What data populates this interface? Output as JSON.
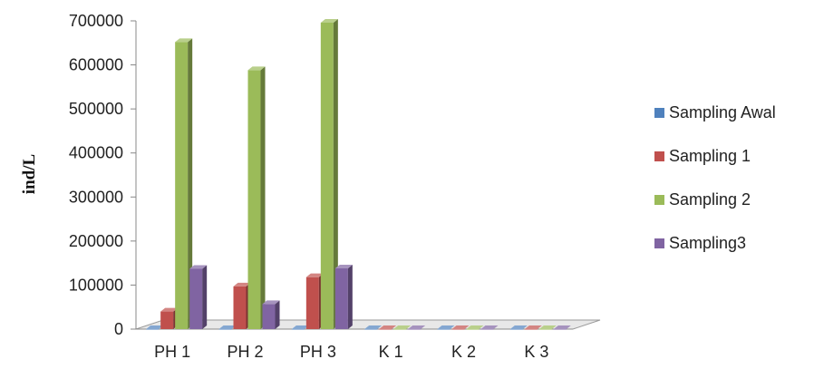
{
  "chart_data": {
    "type": "bar",
    "style": "3d-clustered-column",
    "title": "",
    "xlabel": "",
    "ylabel": "ind/L",
    "categories": [
      "PH 1",
      "PH 2",
      "PH 3",
      "K 1",
      "K 2",
      "K 3"
    ],
    "series": [
      {
        "name": "Sampling Awal",
        "color": "#4F81BD",
        "values": [
          0,
          0,
          0,
          0,
          0,
          0
        ]
      },
      {
        "name": "Sampling 1",
        "color": "#C0504D",
        "values": [
          40000,
          97000,
          118000,
          0,
          0,
          0
        ]
      },
      {
        "name": "Sampling 2",
        "color": "#9BBB59",
        "values": [
          652000,
          588000,
          696000,
          0,
          0,
          0
        ]
      },
      {
        "name": "Sampling3",
        "color": "#8064A2",
        "values": [
          137000,
          57000,
          138000,
          0,
          0,
          0
        ]
      }
    ],
    "ylim": [
      0,
      700000
    ],
    "yticks": [
      "0",
      "100000",
      "200000",
      "300000",
      "400000",
      "500000",
      "600000",
      "700000"
    ],
    "grid": false,
    "legend": "right"
  }
}
